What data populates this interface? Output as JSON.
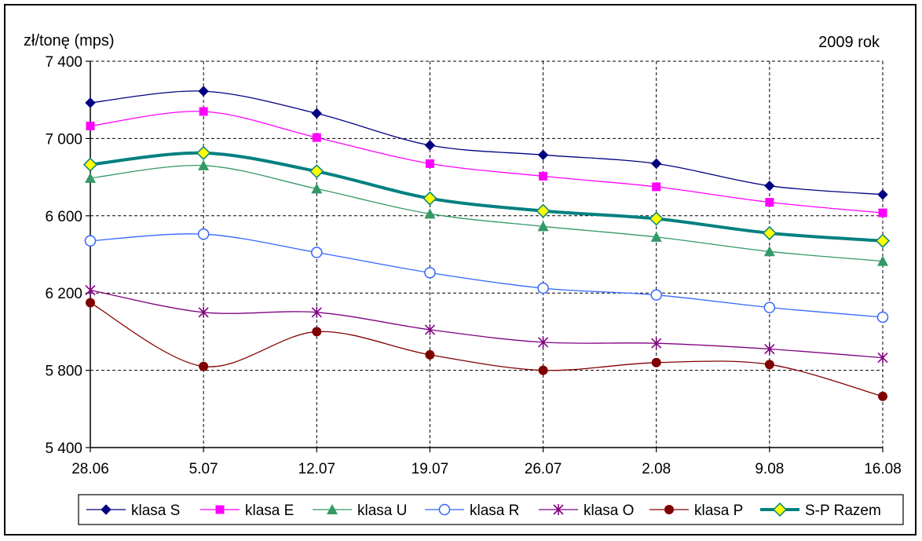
{
  "chart_data": {
    "type": "line",
    "ylabel": "zł/tonę (mps)",
    "annotation": "2009 rok",
    "categories": [
      "28.06",
      "5.07",
      "12.07",
      "19.07",
      "26.07",
      "2.08",
      "9.08",
      "16.08"
    ],
    "ylim": [
      5400,
      7400
    ],
    "yticks": [
      5400,
      5800,
      6200,
      6600,
      7000,
      7400
    ],
    "ytick_labels": [
      "5 400",
      "5 800",
      "6 200",
      "6 600",
      "7 000",
      "7 400"
    ],
    "grid": true,
    "legend_position": "bottom",
    "series": [
      {
        "name": "klasa S",
        "color": "#000080",
        "marker": "diamond",
        "values": [
          7185,
          7245,
          7130,
          6965,
          6915,
          6870,
          6755,
          6710
        ]
      },
      {
        "name": "klasa E",
        "color": "#ff00ff",
        "marker": "square",
        "values": [
          7065,
          7140,
          7005,
          6870,
          6805,
          6750,
          6670,
          6615
        ]
      },
      {
        "name": "klasa U",
        "color": "#339966",
        "marker": "triangle",
        "values": [
          6795,
          6860,
          6740,
          6610,
          6545,
          6490,
          6415,
          6365
        ]
      },
      {
        "name": "klasa R",
        "color": "#3366ff",
        "marker": "circle-open",
        "values": [
          6470,
          6505,
          6410,
          6305,
          6225,
          6190,
          6125,
          6075
        ]
      },
      {
        "name": "klasa O",
        "color": "#800080",
        "marker": "star",
        "values": [
          6215,
          6100,
          6100,
          6010,
          5945,
          5940,
          5910,
          5865
        ]
      },
      {
        "name": "klasa P",
        "color": "#800000",
        "marker": "circle",
        "values": [
          6150,
          5820,
          6000,
          5880,
          5800,
          5840,
          5830,
          5665
        ]
      },
      {
        "name": "S-P Razem",
        "color": "#008080",
        "marker": "diamond-yellow",
        "values": [
          6865,
          6925,
          6830,
          6690,
          6625,
          6585,
          6510,
          6470
        ]
      }
    ]
  }
}
